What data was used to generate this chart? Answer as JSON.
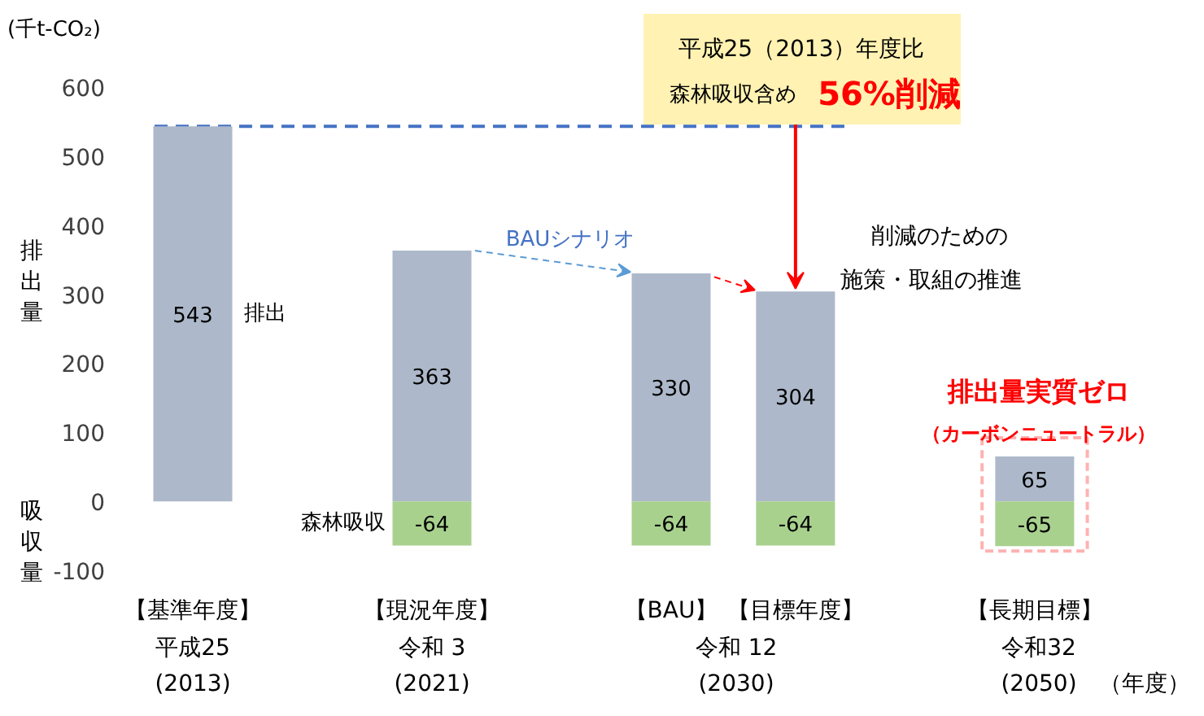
{
  "chart_data": {
    "type": "bar",
    "ylabel": "(千t-CO₂)",
    "categories": [
      "【基準年度】",
      "【現況年度】",
      "【BAU】",
      "【目標年度】",
      "【長期目標】"
    ],
    "stacked": true,
    "series": [
      {
        "name": "排出",
        "color": "#adb9ca",
        "values": [
          543,
          363,
          330,
          304,
          65
        ]
      },
      {
        "name": "森林吸収",
        "color": "#a9d18e",
        "values": [
          null,
          -64,
          -64,
          -64,
          -65
        ]
      }
    ],
    "ylim": [
      -100,
      600
    ],
    "yticks": [
      -100,
      0,
      100,
      200,
      300,
      400,
      500,
      600
    ],
    "ref_lines": [
      {
        "axis": "y",
        "value": 543,
        "color": "#4472c4",
        "line_style": "dashed"
      }
    ],
    "data_labels": true,
    "grid": false,
    "legend": false,
    "annotations": [
      "排出量",
      "吸収量",
      "BAUシナリオ",
      "削減のための",
      "施策・取組の推進",
      "平成25（2013）年度比",
      {
        "text": "森林吸収含め",
        "x": "【目標年度】",
        "y": 304
      },
      "56%削減",
      "排出量実質ゼロ",
      "（カーボンニュートラル）",
      "平成25",
      "(2013)",
      "令和 3",
      "(2021)",
      "令和 12",
      "(2030)",
      "令和32",
      "(2050)",
      "（年度）"
    ]
  }
}
